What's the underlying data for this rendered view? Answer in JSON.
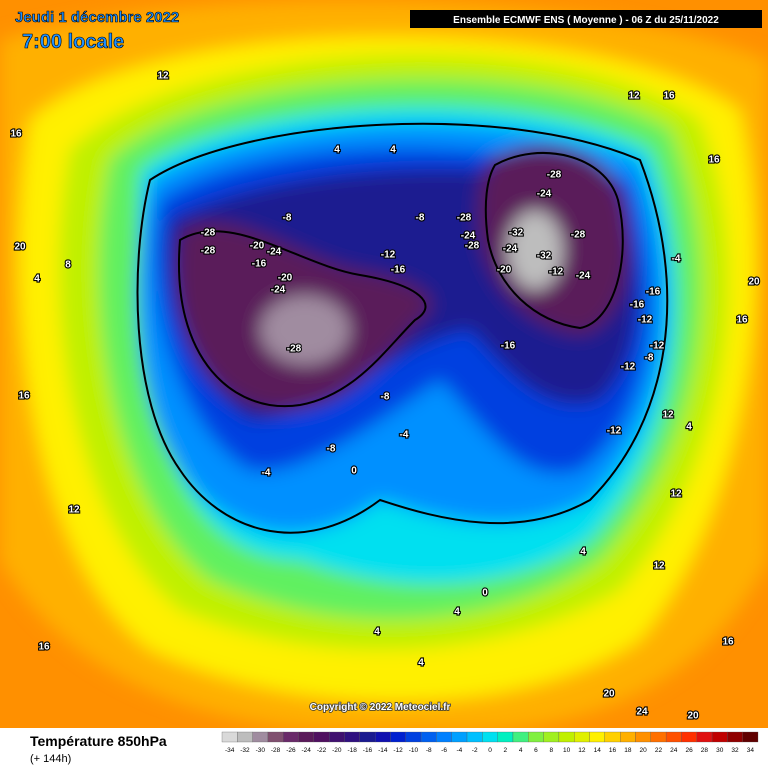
{
  "header": {
    "date": "Jeudi 1 décembre 2022",
    "time": "7:00 locale",
    "run": "Ensemble ECMWF ENS  ( Moyenne )  -  06 Z du 25/11/2022"
  },
  "copyright": "Copyright © 2022 Meteociel.fr",
  "legend": {
    "title": "Température 850hPa",
    "subtitle": "(+ 144h)",
    "ticks": [
      -34,
      -32,
      -30,
      -28,
      -26,
      -24,
      -22,
      -20,
      -18,
      -16,
      -14,
      -12,
      -10,
      -8,
      -6,
      -4,
      -2,
      0,
      2,
      4,
      6,
      8,
      10,
      12,
      14,
      16,
      18,
      20,
      22,
      24,
      26,
      28,
      30,
      32,
      34
    ],
    "colors": [
      "#d9d9d9",
      "#bdbdbd",
      "#a08ca0",
      "#805070",
      "#6a2a6a",
      "#5a1a5a",
      "#501060",
      "#401070",
      "#301080",
      "#1a1a90",
      "#1010b0",
      "#0020d0",
      "#0040e0",
      "#0060f0",
      "#0080ff",
      "#00a0ff",
      "#00c0ff",
      "#00e0f0",
      "#00f0c0",
      "#40f080",
      "#80f040",
      "#a0f020",
      "#c0f000",
      "#e0f000",
      "#fff000",
      "#ffd000",
      "#ffb000",
      "#ff9000",
      "#ff7000",
      "#ff5000",
      "#ff3000",
      "#e01010",
      "#c00000",
      "#900000",
      "#600000"
    ]
  },
  "contour_labels": [
    12,
    16,
    4,
    4,
    12,
    16,
    16,
    20,
    4,
    8,
    -28,
    -28,
    -20,
    -24,
    -16,
    -20,
    -24,
    -12,
    -16,
    -8,
    -8,
    -28,
    -24,
    -28,
    -32,
    -24,
    -20,
    -28,
    -24,
    -28,
    -32,
    -12,
    -24,
    -16,
    -16,
    -12,
    -12,
    -8,
    -12,
    -16,
    -28,
    -8,
    -4,
    -8,
    -12,
    0,
    -4,
    12,
    16,
    12,
    12,
    4,
    0,
    4,
    4,
    4,
    16,
    16,
    20,
    24,
    20,
    20,
    -4,
    12,
    4,
    16
  ]
}
